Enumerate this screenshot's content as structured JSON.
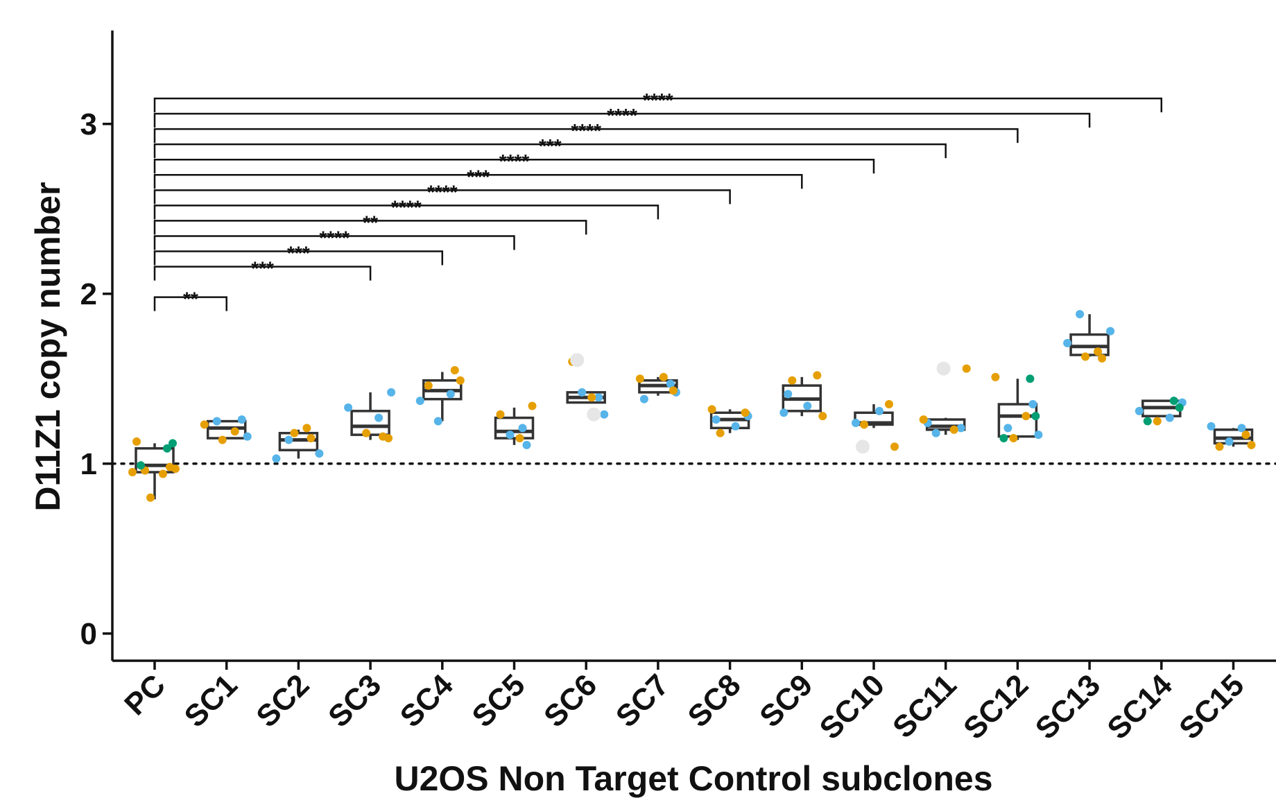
{
  "chart_data": {
    "type": "box",
    "title": "",
    "xlabel": "U2OS Non Target Control subclones",
    "ylabel": "D11Z1 copy number",
    "ylim": [
      -0.16,
      3.55
    ],
    "yticks": [
      0,
      1,
      2,
      3
    ],
    "reference_line": 1,
    "categories": [
      "PC",
      "SC1",
      "SC2",
      "SC3",
      "SC4",
      "SC5",
      "SC6",
      "SC7",
      "SC8",
      "SC9",
      "SC10",
      "SC11",
      "SC12",
      "SC13",
      "SC14",
      "SC15"
    ],
    "colors": {
      "blue": "#56b4e9",
      "orange": "#e69f00",
      "green": "#009e73",
      "outlier": "#e6e6e6"
    },
    "boxes": [
      {
        "q1": 0.95,
        "median": 0.99,
        "q3": 1.09,
        "wlo": 0.79,
        "whi": 1.12
      },
      {
        "q1": 1.15,
        "median": 1.21,
        "q3": 1.25,
        "wlo": 1.15,
        "whi": 1.25
      },
      {
        "q1": 1.08,
        "median": 1.14,
        "q3": 1.18,
        "wlo": 1.03,
        "whi": 1.2
      },
      {
        "q1": 1.17,
        "median": 1.22,
        "q3": 1.31,
        "wlo": 1.14,
        "whi": 1.42
      },
      {
        "q1": 1.38,
        "median": 1.43,
        "q3": 1.49,
        "wlo": 1.25,
        "whi": 1.54
      },
      {
        "q1": 1.15,
        "median": 1.19,
        "q3": 1.27,
        "wlo": 1.11,
        "whi": 1.33
      },
      {
        "q1": 1.36,
        "median": 1.39,
        "q3": 1.42,
        "wlo": 1.36,
        "whi": 1.42
      },
      {
        "q1": 1.42,
        "median": 1.46,
        "q3": 1.49,
        "wlo": 1.4,
        "whi": 1.51
      },
      {
        "q1": 1.21,
        "median": 1.26,
        "q3": 1.3,
        "wlo": 1.18,
        "whi": 1.32
      },
      {
        "q1": 1.31,
        "median": 1.38,
        "q3": 1.46,
        "wlo": 1.28,
        "whi": 1.51
      },
      {
        "q1": 1.23,
        "median": 1.24,
        "q3": 1.3,
        "wlo": 1.21,
        "whi": 1.35
      },
      {
        "q1": 1.2,
        "median": 1.22,
        "q3": 1.26,
        "wlo": 1.17,
        "whi": 1.27
      },
      {
        "q1": 1.16,
        "median": 1.28,
        "q3": 1.35,
        "wlo": 1.14,
        "whi": 1.5
      },
      {
        "q1": 1.64,
        "median": 1.69,
        "q3": 1.76,
        "wlo": 1.63,
        "whi": 1.88
      },
      {
        "q1": 1.28,
        "median": 1.33,
        "q3": 1.37,
        "wlo": 1.28,
        "whi": 1.37
      },
      {
        "q1": 1.12,
        "median": 1.15,
        "q3": 1.2,
        "wlo": 1.1,
        "whi": 1.21
      }
    ],
    "points": [
      [
        [
          "orange",
          1.13
        ],
        [
          "orange",
          0.98
        ],
        [
          "orange",
          0.96
        ],
        [
          "orange",
          0.97
        ],
        [
          "orange",
          0.95
        ],
        [
          "orange",
          0.94
        ],
        [
          "orange",
          0.8
        ],
        [
          "green",
          1.09
        ],
        [
          "green",
          1.12
        ],
        [
          "green",
          0.99
        ]
      ],
      [
        [
          "blue",
          1.26
        ],
        [
          "blue",
          1.25
        ],
        [
          "blue",
          1.16
        ],
        [
          "orange",
          1.23
        ],
        [
          "orange",
          1.19
        ],
        [
          "orange",
          1.14
        ]
      ],
      [
        [
          "blue",
          1.14
        ],
        [
          "blue",
          1.06
        ],
        [
          "blue",
          1.03
        ],
        [
          "orange",
          1.21
        ],
        [
          "orange",
          1.18
        ],
        [
          "orange",
          1.15
        ]
      ],
      [
        [
          "blue",
          1.42
        ],
        [
          "blue",
          1.33
        ],
        [
          "blue",
          1.27
        ],
        [
          "orange",
          1.18
        ],
        [
          "orange",
          1.16
        ],
        [
          "orange",
          1.15
        ]
      ],
      [
        [
          "blue",
          1.37
        ],
        [
          "blue",
          1.41
        ],
        [
          "blue",
          1.25
        ],
        [
          "orange",
          1.55
        ],
        [
          "orange",
          1.49
        ],
        [
          "orange",
          1.46
        ]
      ],
      [
        [
          "blue",
          1.21
        ],
        [
          "blue",
          1.17
        ],
        [
          "blue",
          1.11
        ],
        [
          "orange",
          1.34
        ],
        [
          "orange",
          1.29
        ],
        [
          "orange",
          1.15
        ]
      ],
      [
        [
          "blue",
          1.42
        ],
        [
          "blue",
          1.39
        ],
        [
          "blue",
          1.29
        ],
        [
          "orange",
          1.6
        ],
        [
          "orange",
          1.39
        ],
        [
          "outlier",
          1.61
        ],
        [
          "outlier",
          1.29
        ]
      ],
      [
        [
          "blue",
          1.47
        ],
        [
          "blue",
          1.42
        ],
        [
          "blue",
          1.38
        ],
        [
          "orange",
          1.51
        ],
        [
          "orange",
          1.5
        ],
        [
          "orange",
          1.43
        ]
      ],
      [
        [
          "blue",
          1.28
        ],
        [
          "blue",
          1.26
        ],
        [
          "blue",
          1.22
        ],
        [
          "orange",
          1.32
        ],
        [
          "orange",
          1.3
        ],
        [
          "orange",
          1.18
        ]
      ],
      [
        [
          "blue",
          1.41
        ],
        [
          "blue",
          1.34
        ],
        [
          "blue",
          1.3
        ],
        [
          "orange",
          1.52
        ],
        [
          "orange",
          1.49
        ],
        [
          "orange",
          1.28
        ]
      ],
      [
        [
          "blue",
          1.31
        ],
        [
          "blue",
          1.24
        ],
        [
          "orange",
          1.35
        ],
        [
          "orange",
          1.23
        ],
        [
          "orange",
          1.1
        ],
        [
          "outlier",
          1.1
        ]
      ],
      [
        [
          "blue",
          1.24
        ],
        [
          "blue",
          1.21
        ],
        [
          "blue",
          1.18
        ],
        [
          "orange",
          1.56
        ],
        [
          "orange",
          1.26
        ],
        [
          "orange",
          1.2
        ],
        [
          "outlier",
          1.56
        ]
      ],
      [
        [
          "blue",
          1.35
        ],
        [
          "blue",
          1.21
        ],
        [
          "blue",
          1.17
        ],
        [
          "orange",
          1.51
        ],
        [
          "orange",
          1.28
        ],
        [
          "orange",
          1.15
        ],
        [
          "green",
          1.5
        ],
        [
          "green",
          1.28
        ],
        [
          "green",
          1.15
        ]
      ],
      [
        [
          "blue",
          1.88
        ],
        [
          "blue",
          1.78
        ],
        [
          "blue",
          1.71
        ],
        [
          "orange",
          1.66
        ],
        [
          "orange",
          1.63
        ],
        [
          "orange",
          1.62
        ]
      ],
      [
        [
          "blue",
          1.36
        ],
        [
          "blue",
          1.31
        ],
        [
          "blue",
          1.27
        ],
        [
          "orange",
          1.25
        ],
        [
          "green",
          1.37
        ],
        [
          "green",
          1.33
        ],
        [
          "green",
          1.25
        ]
      ],
      [
        [
          "blue",
          1.22
        ],
        [
          "blue",
          1.21
        ],
        [
          "blue",
          1.13
        ],
        [
          "orange",
          1.17
        ],
        [
          "orange",
          1.11
        ],
        [
          "orange",
          1.1
        ]
      ]
    ],
    "comparisons": [
      {
        "from": "PC",
        "to": "SC1",
        "label": "**",
        "y": 1.98
      },
      {
        "from": "PC",
        "to": "SC3",
        "label": "***",
        "y": 2.16
      },
      {
        "from": "PC",
        "to": "SC4",
        "label": "***",
        "y": 2.25
      },
      {
        "from": "PC",
        "to": "SC5",
        "label": "****",
        "y": 2.34
      },
      {
        "from": "PC",
        "to": "SC6",
        "label": "**",
        "y": 2.43
      },
      {
        "from": "PC",
        "to": "SC7",
        "label": "****",
        "y": 2.52
      },
      {
        "from": "PC",
        "to": "SC8",
        "label": "****",
        "y": 2.61
      },
      {
        "from": "PC",
        "to": "SC9",
        "label": "***",
        "y": 2.7
      },
      {
        "from": "PC",
        "to": "SC10",
        "label": "****",
        "y": 2.79
      },
      {
        "from": "PC",
        "to": "SC11",
        "label": "***",
        "y": 2.88
      },
      {
        "from": "PC",
        "to": "SC12",
        "label": "****",
        "y": 2.97
      },
      {
        "from": "PC",
        "to": "SC13",
        "label": "****",
        "y": 3.06
      },
      {
        "from": "PC",
        "to": "SC14",
        "label": "****",
        "y": 3.15
      }
    ]
  }
}
